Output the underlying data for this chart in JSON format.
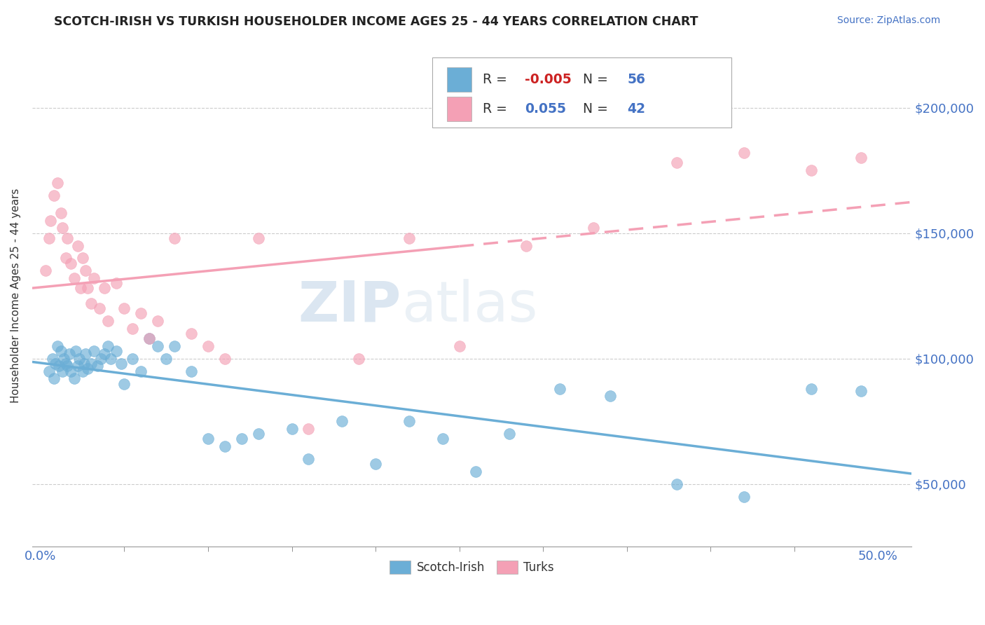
{
  "title": "SCOTCH-IRISH VS TURKISH HOUSEHOLDER INCOME AGES 25 - 44 YEARS CORRELATION CHART",
  "source": "Source: ZipAtlas.com",
  "ylabel": "Householder Income Ages 25 - 44 years",
  "xlim": [
    -0.005,
    0.52
  ],
  "ylim": [
    25000,
    225000
  ],
  "xtick_vals": [
    0.0,
    0.5
  ],
  "xtick_labels": [
    "0.0%",
    "50.0%"
  ],
  "xtick_minor_vals": [
    0.05,
    0.1,
    0.15,
    0.2,
    0.25,
    0.3,
    0.35,
    0.4,
    0.45
  ],
  "ytick_vals": [
    50000,
    100000,
    150000,
    200000
  ],
  "ytick_labels": [
    "$50,000",
    "$100,000",
    "$150,000",
    "$200,000"
  ],
  "scotch_irish_color": "#6baed6",
  "turks_color": "#f4a0b5",
  "scotch_irish_R": "-0.005",
  "scotch_irish_N": "56",
  "turks_R": "0.055",
  "turks_N": "42",
  "watermark_zip": "ZIP",
  "watermark_atlas": "atlas",
  "scotch_irish_x": [
    0.005,
    0.007,
    0.008,
    0.009,
    0.01,
    0.011,
    0.012,
    0.013,
    0.014,
    0.015,
    0.016,
    0.017,
    0.018,
    0.02,
    0.021,
    0.022,
    0.023,
    0.025,
    0.026,
    0.027,
    0.028,
    0.03,
    0.032,
    0.034,
    0.036,
    0.038,
    0.04,
    0.042,
    0.045,
    0.048,
    0.05,
    0.055,
    0.06,
    0.065,
    0.07,
    0.075,
    0.08,
    0.09,
    0.1,
    0.11,
    0.12,
    0.13,
    0.15,
    0.16,
    0.18,
    0.2,
    0.22,
    0.24,
    0.26,
    0.28,
    0.31,
    0.34,
    0.38,
    0.42,
    0.46,
    0.49
  ],
  "scotch_irish_y": [
    95000,
    100000,
    92000,
    98000,
    105000,
    97000,
    103000,
    95000,
    100000,
    98000,
    97000,
    102000,
    95000,
    92000,
    103000,
    97000,
    100000,
    95000,
    98000,
    102000,
    96000,
    98000,
    103000,
    97000,
    100000,
    102000,
    105000,
    100000,
    103000,
    98000,
    90000,
    100000,
    95000,
    108000,
    105000,
    100000,
    105000,
    95000,
    68000,
    65000,
    68000,
    70000,
    72000,
    60000,
    75000,
    58000,
    75000,
    68000,
    55000,
    70000,
    88000,
    85000,
    50000,
    45000,
    88000,
    87000
  ],
  "turks_x": [
    0.003,
    0.005,
    0.006,
    0.008,
    0.01,
    0.012,
    0.013,
    0.015,
    0.016,
    0.018,
    0.02,
    0.022,
    0.024,
    0.025,
    0.027,
    0.028,
    0.03,
    0.032,
    0.035,
    0.038,
    0.04,
    0.045,
    0.05,
    0.055,
    0.06,
    0.065,
    0.07,
    0.08,
    0.09,
    0.1,
    0.11,
    0.13,
    0.16,
    0.19,
    0.22,
    0.25,
    0.29,
    0.33,
    0.38,
    0.42,
    0.46,
    0.49
  ],
  "turks_y": [
    135000,
    148000,
    155000,
    165000,
    170000,
    158000,
    152000,
    140000,
    148000,
    138000,
    132000,
    145000,
    128000,
    140000,
    135000,
    128000,
    122000,
    132000,
    120000,
    128000,
    115000,
    130000,
    120000,
    112000,
    118000,
    108000,
    115000,
    148000,
    110000,
    105000,
    100000,
    148000,
    72000,
    100000,
    148000,
    105000,
    145000,
    152000,
    178000,
    182000,
    175000,
    180000
  ]
}
